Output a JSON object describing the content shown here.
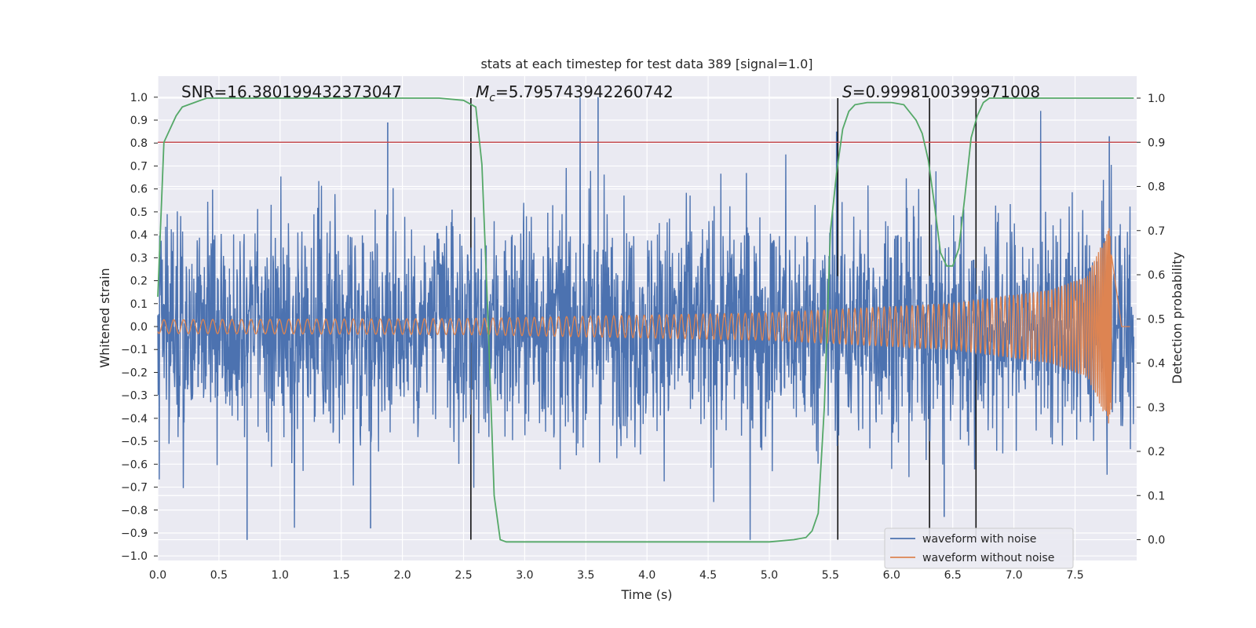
{
  "chart_data": {
    "type": "line",
    "title": "stats at each timestep for test data 389 [signal=1.0]",
    "xlabel": "Time (s)",
    "ylabel": "Whitened strain",
    "y2label": "Detection probability",
    "xlim": [
      0.0,
      8.0
    ],
    "ylim": [
      -1.05,
      1.05
    ],
    "y2lim": [
      -0.05,
      1.05
    ],
    "x_ticks": [
      "0.0",
      "0.5",
      "1.0",
      "1.5",
      "2.0",
      "2.5",
      "3.0",
      "3.5",
      "4.0",
      "4.5",
      "5.0",
      "5.5",
      "6.0",
      "6.5",
      "7.0",
      "7.5"
    ],
    "y_ticks": [
      "1.0",
      "0.9",
      "0.8",
      "0.7",
      "0.6",
      "0.5",
      "0.4",
      "0.3",
      "0.2",
      "0.1",
      "0.0",
      "−0.1",
      "−0.2",
      "−0.3",
      "−0.4",
      "−0.5",
      "−0.6",
      "−0.7",
      "−0.8",
      "−0.9",
      "−1.0"
    ],
    "y2_ticks": [
      "1.0",
      "0.9",
      "0.8",
      "0.7",
      "0.6",
      "0.5",
      "0.4",
      "0.3",
      "0.2",
      "0.1",
      "0.0"
    ],
    "grid": true,
    "legend_position": "lower right",
    "annotations": {
      "snr": "SNR=16.380199432373047",
      "mc_symbol": "M",
      "mc_sub": "c",
      "mc_value": "=5.795743942260742",
      "s_symbol": "S",
      "s_value": "=0.9998100399971008"
    },
    "threshold_y2": 0.9,
    "vertical_lines_x": [
      2.56,
      5.56,
      6.31,
      6.69
    ],
    "series": [
      {
        "name": "waveform with noise",
        "color": "#4c72b0",
        "kind": "noise",
        "typical_amplitude": 0.45,
        "min": -0.93,
        "max": 1.0,
        "x_range": [
          0.0,
          7.98
        ],
        "peaks": [
          [
            3.6,
            1.0
          ],
          [
            1.88,
            0.89
          ],
          [
            7.78,
            0.83
          ],
          [
            5.55,
            0.85
          ],
          [
            0.73,
            -0.93
          ],
          [
            1.74,
            -0.88
          ],
          [
            6.43,
            -0.83
          ]
        ]
      },
      {
        "name": "waveform without noise",
        "color": "#dd8452",
        "kind": "chirp",
        "x_range": [
          0.0,
          7.95
        ],
        "merger_time": 7.8,
        "amplitude_points": [
          [
            0.0,
            0.03
          ],
          [
            2.5,
            0.035
          ],
          [
            5.0,
            0.06
          ],
          [
            6.5,
            0.1
          ],
          [
            7.3,
            0.16
          ],
          [
            7.6,
            0.22
          ],
          [
            7.78,
            0.43
          ],
          [
            7.81,
            0.3
          ],
          [
            7.88,
            0.0
          ]
        ]
      },
      {
        "name": "",
        "color": "#55a868",
        "axis": "y2",
        "x": [
          0.0,
          0.05,
          0.1,
          0.15,
          0.2,
          0.3,
          0.4,
          0.6,
          1.0,
          1.5,
          2.0,
          2.3,
          2.5,
          2.6,
          2.65,
          2.7,
          2.75,
          2.8,
          2.85,
          3.0,
          4.0,
          5.0,
          5.2,
          5.3,
          5.35,
          5.4,
          5.45,
          5.5,
          5.55,
          5.6,
          5.65,
          5.7,
          5.8,
          6.0,
          6.1,
          6.2,
          6.25,
          6.3,
          6.35,
          6.4,
          6.45,
          6.5,
          6.55,
          6.6,
          6.65,
          6.7,
          6.75,
          6.8,
          6.9,
          7.0,
          7.5,
          7.98
        ],
        "y": [
          0.55,
          0.9,
          0.93,
          0.96,
          0.98,
          0.99,
          1.0,
          1.0,
          1.0,
          1.0,
          1.0,
          1.0,
          0.995,
          0.98,
          0.85,
          0.5,
          0.1,
          0.0,
          -0.005,
          -0.005,
          -0.005,
          -0.005,
          0.0,
          0.005,
          0.02,
          0.06,
          0.3,
          0.7,
          0.83,
          0.93,
          0.97,
          0.985,
          0.99,
          0.99,
          0.985,
          0.95,
          0.92,
          0.86,
          0.76,
          0.65,
          0.62,
          0.62,
          0.66,
          0.78,
          0.91,
          0.96,
          0.99,
          1.0,
          1.0,
          1.0,
          1.0,
          1.0
        ]
      },
      {
        "name": "",
        "color": "#c44e52",
        "axis": "y2",
        "kind": "threshold",
        "y": 0.9
      }
    ]
  }
}
